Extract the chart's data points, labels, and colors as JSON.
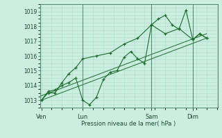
{
  "bg_color": "#cceee0",
  "grid_color": "#aaddcc",
  "line_color": "#1a6b2a",
  "marker_color": "#1a6b2a",
  "xlabel": "Pression niveau de la mer( hPa )",
  "xtick_labels": [
    "Ven",
    "Lun",
    "Sam",
    "Dim"
  ],
  "xtick_positions": [
    0,
    3,
    8,
    11
  ],
  "ylim": [
    1012.5,
    1019.5
  ],
  "yticks": [
    1013,
    1014,
    1015,
    1016,
    1017,
    1018,
    1019
  ],
  "xlim": [
    -0.1,
    12.8
  ],
  "line1_x": [
    0,
    0.5,
    1.0,
    1.5,
    2.0,
    2.5,
    3.0,
    3.5,
    4.0,
    4.5,
    5.0,
    5.5,
    6.0,
    6.5,
    7.0,
    7.5,
    8.0,
    8.5,
    9.0,
    9.5,
    10.0,
    10.5,
    11.0,
    11.5,
    12.0
  ],
  "line1_y": [
    1013.0,
    1013.6,
    1013.7,
    1014.0,
    1014.2,
    1014.5,
    1013.0,
    1012.7,
    1013.2,
    1014.4,
    1014.9,
    1015.0,
    1015.9,
    1016.3,
    1015.8,
    1015.5,
    1018.1,
    1018.5,
    1018.75,
    1018.1,
    1017.8,
    1019.1,
    1017.1,
    1017.5,
    1017.2
  ],
  "line2_x": [
    0,
    0.5,
    1.0,
    1.5,
    2.0,
    2.5,
    3.0,
    4.0,
    5.0,
    6.0,
    7.0,
    8.0,
    9.0,
    10.0,
    11.0,
    11.5,
    12.0
  ],
  "line2_y": [
    1013.0,
    1013.5,
    1013.5,
    1014.2,
    1014.8,
    1015.2,
    1015.8,
    1016.0,
    1016.2,
    1016.8,
    1017.2,
    1018.1,
    1017.5,
    1017.85,
    1017.1,
    1017.5,
    1017.2
  ],
  "trend1_x": [
    0,
    12.0
  ],
  "trend1_y": [
    1013.0,
    1017.2
  ],
  "trend2_x": [
    0,
    12.0
  ],
  "trend2_y": [
    1013.3,
    1017.5
  ],
  "vlines_x": [
    3,
    8,
    11
  ],
  "figsize": [
    3.2,
    2.0
  ],
  "dpi": 100
}
